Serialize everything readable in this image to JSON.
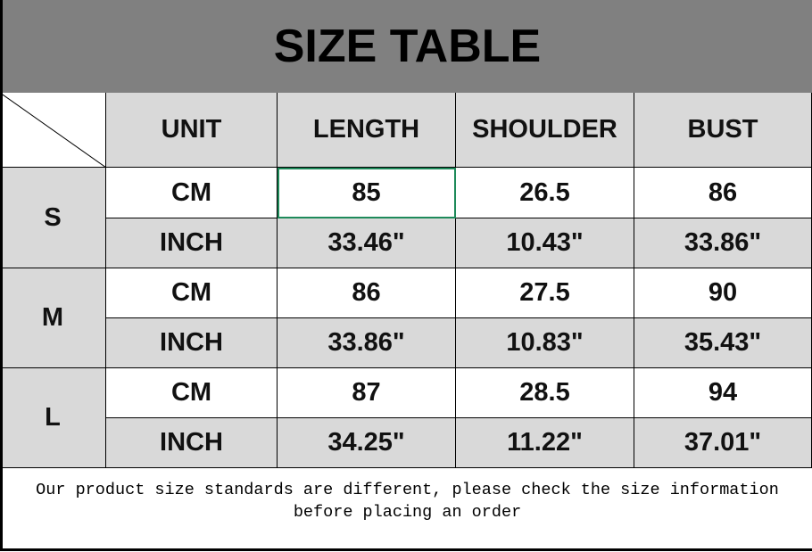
{
  "title": "SIZE TABLE",
  "headers": [
    "UNIT",
    "LENGTH",
    "SHOULDER",
    "BUST"
  ],
  "sizes": [
    {
      "size": "S",
      "rows": [
        [
          "CM",
          "85",
          "26.5",
          "86"
        ],
        [
          "INCH",
          "33.46\"",
          "10.43\"",
          "33.86\""
        ]
      ]
    },
    {
      "size": "M",
      "rows": [
        [
          "CM",
          "86",
          "27.5",
          "90"
        ],
        [
          "INCH",
          "33.86\"",
          "10.83\"",
          "35.43\""
        ]
      ]
    },
    {
      "size": "L",
      "rows": [
        [
          "CM",
          "87",
          "28.5",
          "94"
        ],
        [
          "INCH",
          "34.25\"",
          "11.22\"",
          "37.01\""
        ]
      ]
    }
  ],
  "note": "Our product size standards are different, please check the size information before placing an order",
  "colors": {
    "title_bg": "#808080",
    "cell_gray": "#d9d9d9",
    "selection": "#1e8a5a"
  }
}
